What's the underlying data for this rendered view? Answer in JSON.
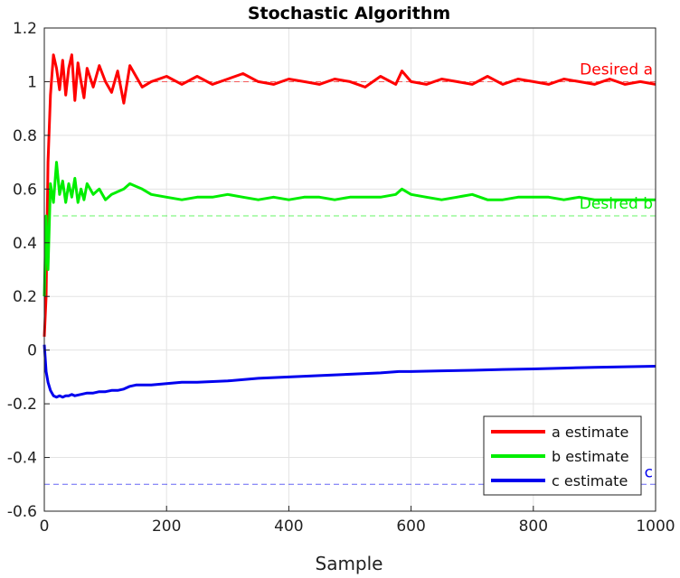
{
  "chart_data": {
    "type": "line",
    "title": "Stochastic Algorithm",
    "xlabel": "Sample",
    "ylabel": "",
    "xlim": [
      0,
      1000
    ],
    "ylim": [
      -0.6,
      1.2
    ],
    "xticks": [
      0,
      200,
      400,
      600,
      800,
      1000
    ],
    "xtick_labels": [
      "0",
      "200",
      "400",
      "600",
      "800",
      "1000"
    ],
    "yticks": [
      -0.6,
      -0.4,
      -0.2,
      0,
      0.2,
      0.4,
      0.6,
      0.8,
      1,
      1.2
    ],
    "ytick_labels": [
      "-0.6",
      "-0.4",
      "-0.2",
      "0",
      "0.2",
      "0.4",
      "0.6",
      "0.8",
      "1",
      "1.2"
    ],
    "grid": true,
    "legend_position": "bottom-right",
    "series": [
      {
        "name": "a estimate",
        "color": "#ff0000",
        "x": [
          0,
          3,
          6,
          10,
          15,
          20,
          25,
          30,
          35,
          40,
          45,
          50,
          55,
          60,
          65,
          70,
          80,
          90,
          100,
          110,
          120,
          130,
          140,
          150,
          160,
          175,
          200,
          225,
          250,
          275,
          300,
          325,
          350,
          375,
          400,
          425,
          450,
          475,
          500,
          525,
          550,
          575,
          585,
          600,
          625,
          650,
          675,
          700,
          725,
          750,
          775,
          800,
          825,
          850,
          875,
          900,
          925,
          950,
          975,
          1000
        ],
        "y": [
          0.05,
          0.2,
          0.7,
          0.95,
          1.1,
          1.05,
          0.97,
          1.08,
          0.95,
          1.05,
          1.1,
          0.93,
          1.07,
          1.0,
          0.94,
          1.05,
          0.98,
          1.06,
          1.0,
          0.96,
          1.04,
          0.92,
          1.06,
          1.02,
          0.98,
          1.0,
          1.02,
          0.99,
          1.02,
          0.99,
          1.01,
          1.03,
          1.0,
          0.99,
          1.01,
          1.0,
          0.99,
          1.01,
          1.0,
          0.98,
          1.02,
          0.99,
          1.04,
          1.0,
          0.99,
          1.01,
          1.0,
          0.99,
          1.02,
          0.99,
          1.01,
          1.0,
          0.99,
          1.01,
          1.0,
          0.99,
          1.01,
          0.99,
          1.0,
          0.99
        ]
      },
      {
        "name": "b estimate",
        "color": "#00ee00",
        "x": [
          0,
          3,
          6,
          10,
          15,
          20,
          25,
          30,
          35,
          40,
          45,
          50,
          55,
          60,
          65,
          70,
          80,
          90,
          100,
          110,
          120,
          130,
          140,
          150,
          160,
          175,
          200,
          225,
          250,
          275,
          300,
          325,
          350,
          375,
          400,
          425,
          450,
          475,
          500,
          525,
          550,
          575,
          585,
          600,
          625,
          650,
          675,
          700,
          725,
          750,
          775,
          800,
          825,
          850,
          875,
          900,
          925,
          950,
          975,
          1000
        ],
        "y": [
          0.2,
          0.5,
          0.3,
          0.62,
          0.55,
          0.7,
          0.58,
          0.63,
          0.55,
          0.62,
          0.57,
          0.64,
          0.55,
          0.6,
          0.56,
          0.62,
          0.58,
          0.6,
          0.56,
          0.58,
          0.59,
          0.6,
          0.62,
          0.61,
          0.6,
          0.58,
          0.57,
          0.56,
          0.57,
          0.57,
          0.58,
          0.57,
          0.56,
          0.57,
          0.56,
          0.57,
          0.57,
          0.56,
          0.57,
          0.57,
          0.57,
          0.58,
          0.6,
          0.58,
          0.57,
          0.56,
          0.57,
          0.58,
          0.56,
          0.56,
          0.57,
          0.57,
          0.57,
          0.56,
          0.57,
          0.56,
          0.56,
          0.56,
          0.56,
          0.56
        ]
      },
      {
        "name": "c estimate",
        "color": "#0000ee",
        "x": [
          0,
          3,
          6,
          10,
          15,
          20,
          25,
          30,
          35,
          40,
          45,
          50,
          60,
          70,
          80,
          90,
          100,
          110,
          120,
          130,
          140,
          150,
          175,
          200,
          225,
          250,
          300,
          350,
          400,
          450,
          500,
          550,
          580,
          600,
          650,
          700,
          750,
          800,
          850,
          900,
          950,
          1000
        ],
        "y": [
          0.02,
          -0.08,
          -0.12,
          -0.15,
          -0.17,
          -0.175,
          -0.17,
          -0.175,
          -0.17,
          -0.17,
          -0.165,
          -0.17,
          -0.165,
          -0.16,
          -0.16,
          -0.155,
          -0.155,
          -0.15,
          -0.15,
          -0.145,
          -0.135,
          -0.13,
          -0.13,
          -0.125,
          -0.12,
          -0.12,
          -0.115,
          -0.105,
          -0.1,
          -0.095,
          -0.09,
          -0.085,
          -0.08,
          -0.08,
          -0.077,
          -0.075,
          -0.072,
          -0.07,
          -0.067,
          -0.064,
          -0.062,
          -0.06
        ]
      }
    ],
    "reference_lines": [
      {
        "label": "Desired a",
        "y": 1.0,
        "color": "#ff0000",
        "style": "dashed"
      },
      {
        "label": "Desired b",
        "y": 0.5,
        "color": "#00ee00",
        "style": "dashed"
      },
      {
        "label": "c",
        "y": -0.5,
        "color": "#0000ee",
        "style": "dashed"
      }
    ]
  }
}
